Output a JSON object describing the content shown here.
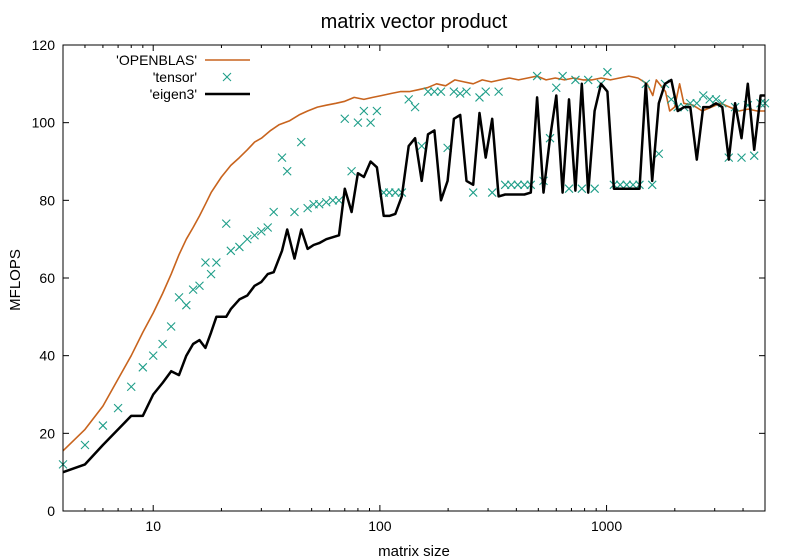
{
  "chart_data": {
    "type": "line",
    "title": "matrix vector product",
    "xlabel": "matrix size",
    "ylabel": "MFLOPS",
    "xscale": "log",
    "xlim": [
      4,
      5000
    ],
    "ylim": [
      0,
      120
    ],
    "x_ticks": [
      10,
      100,
      1000
    ],
    "x_tick_labels": [
      "10",
      "100",
      "1000"
    ],
    "y_ticks": [
      0,
      20,
      40,
      60,
      80,
      100,
      120
    ],
    "y_tick_labels": [
      "0",
      "20",
      "40",
      "60",
      "80",
      "100",
      "120"
    ],
    "grid": false,
    "legend_position": "top-left",
    "series": [
      {
        "name": "'OPENBLAS'",
        "style": "line",
        "color": "#c8641e",
        "points": [
          [
            4,
            15.5
          ],
          [
            5,
            21
          ],
          [
            6,
            27
          ],
          [
            7,
            34
          ],
          [
            8,
            40
          ],
          [
            9,
            46
          ],
          [
            10,
            51
          ],
          [
            11,
            56
          ],
          [
            12,
            61
          ],
          [
            13,
            66
          ],
          [
            14,
            70
          ],
          [
            15,
            73
          ],
          [
            16,
            76
          ],
          [
            17,
            79
          ],
          [
            18,
            82
          ],
          [
            20,
            86
          ],
          [
            22,
            89
          ],
          [
            24,
            91
          ],
          [
            26,
            93
          ],
          [
            28,
            95
          ],
          [
            30,
            96
          ],
          [
            33,
            98
          ],
          [
            36,
            99.5
          ],
          [
            40,
            100.5
          ],
          [
            44,
            102
          ],
          [
            48,
            103
          ],
          [
            53,
            104
          ],
          [
            58,
            104.5
          ],
          [
            64,
            105
          ],
          [
            70,
            105.5
          ],
          [
            77,
            106.5
          ],
          [
            85,
            106
          ],
          [
            93,
            106.5
          ],
          [
            102,
            107
          ],
          [
            112,
            107.5
          ],
          [
            123,
            108
          ],
          [
            135,
            108
          ],
          [
            148,
            108.5
          ],
          [
            162,
            109
          ],
          [
            178,
            110
          ],
          [
            195,
            109.5
          ],
          [
            214,
            111
          ],
          [
            235,
            110.5
          ],
          [
            258,
            110
          ],
          [
            283,
            111
          ],
          [
            310,
            110.5
          ],
          [
            340,
            111
          ],
          [
            373,
            111.5
          ],
          [
            409,
            111
          ],
          [
            449,
            111.5
          ],
          [
            493,
            112
          ],
          [
            541,
            111
          ],
          [
            594,
            111.5
          ],
          [
            652,
            111
          ],
          [
            716,
            111.5
          ],
          [
            786,
            111
          ],
          [
            863,
            111
          ],
          [
            947,
            111.5
          ],
          [
            1040,
            111
          ],
          [
            1141,
            111.5
          ],
          [
            1253,
            112
          ],
          [
            1375,
            111.5
          ],
          [
            1510,
            110
          ],
          [
            1600,
            107
          ],
          [
            1657,
            111
          ],
          [
            1819,
            108
          ],
          [
            1900,
            103
          ],
          [
            1997,
            104
          ],
          [
            2100,
            110
          ],
          [
            2192,
            105
          ],
          [
            2407,
            104.5
          ],
          [
            2642,
            103
          ],
          [
            2900,
            104
          ],
          [
            3184,
            105
          ],
          [
            3495,
            104
          ],
          [
            3837,
            103
          ],
          [
            4212,
            103.5
          ],
          [
            4624,
            103
          ],
          [
            5000,
            103
          ]
        ]
      },
      {
        "name": "'tensor'",
        "style": "points",
        "marker": "x",
        "color": "#1f9e89",
        "points": [
          [
            4,
            12
          ],
          [
            5,
            17
          ],
          [
            6,
            22
          ],
          [
            7,
            26.5
          ],
          [
            8,
            32
          ],
          [
            9,
            37
          ],
          [
            10,
            40
          ],
          [
            11,
            43
          ],
          [
            12,
            47.5
          ],
          [
            13,
            55
          ],
          [
            14,
            53
          ],
          [
            15,
            57
          ],
          [
            16,
            58
          ],
          [
            17,
            64
          ],
          [
            18,
            61
          ],
          [
            19,
            64
          ],
          [
            21,
            74
          ],
          [
            22,
            67
          ],
          [
            24,
            68
          ],
          [
            26,
            70
          ],
          [
            28,
            71
          ],
          [
            30,
            72
          ],
          [
            32,
            73
          ],
          [
            34,
            77
          ],
          [
            37,
            91
          ],
          [
            39,
            87.5
          ],
          [
            42,
            77
          ],
          [
            45,
            95
          ],
          [
            48,
            78
          ],
          [
            51,
            79
          ],
          [
            54,
            79
          ],
          [
            58,
            79.5
          ],
          [
            62,
            80
          ],
          [
            66,
            80
          ],
          [
            70,
            101
          ],
          [
            75,
            87.5
          ],
          [
            80,
            100
          ],
          [
            85,
            103
          ],
          [
            91,
            100
          ],
          [
            97,
            103
          ],
          [
            104,
            82
          ],
          [
            110,
            82
          ],
          [
            117,
            82
          ],
          [
            125,
            82
          ],
          [
            134,
            106
          ],
          [
            143,
            104
          ],
          [
            153,
            94
          ],
          [
            163,
            108
          ],
          [
            174,
            108
          ],
          [
            186,
            108
          ],
          [
            199,
            93.5
          ],
          [
            212,
            108
          ],
          [
            226,
            107.5
          ],
          [
            241,
            108
          ],
          [
            258,
            82
          ],
          [
            275,
            106.5
          ],
          [
            293,
            108
          ],
          [
            313,
            82
          ],
          [
            334,
            108
          ],
          [
            357,
            84
          ],
          [
            380,
            84
          ],
          [
            406,
            84
          ],
          [
            434,
            84
          ],
          [
            463,
            84
          ],
          [
            494,
            112
          ],
          [
            527,
            85
          ],
          [
            563,
            96
          ],
          [
            600,
            109
          ],
          [
            640,
            112
          ],
          [
            683,
            83
          ],
          [
            729,
            111
          ],
          [
            778,
            83
          ],
          [
            830,
            111
          ],
          [
            886,
            83
          ],
          [
            945,
            110
          ],
          [
            1009,
            113
          ],
          [
            1077,
            84
          ],
          [
            1149,
            84
          ],
          [
            1227,
            84
          ],
          [
            1309,
            84
          ],
          [
            1397,
            84
          ],
          [
            1490,
            110
          ],
          [
            1590,
            84
          ],
          [
            1700,
            92
          ],
          [
            1810,
            110
          ],
          [
            1930,
            106
          ],
          [
            2060,
            104
          ],
          [
            2200,
            104
          ],
          [
            2340,
            105
          ],
          [
            2500,
            105
          ],
          [
            2670,
            107
          ],
          [
            2850,
            106
          ],
          [
            3040,
            106
          ],
          [
            3240,
            105
          ],
          [
            3460,
            91
          ],
          [
            3690,
            104
          ],
          [
            3940,
            91
          ],
          [
            4200,
            104.5
          ],
          [
            4480,
            91.5
          ],
          [
            4780,
            105
          ],
          [
            5000,
            105
          ]
        ]
      },
      {
        "name": "'eigen3'",
        "style": "line",
        "color": "#000000",
        "points": [
          [
            4,
            10
          ],
          [
            5,
            12
          ],
          [
            6,
            17
          ],
          [
            7,
            21
          ],
          [
            8,
            24.5
          ],
          [
            9,
            24.5
          ],
          [
            10,
            30
          ],
          [
            11,
            33
          ],
          [
            12,
            36
          ],
          [
            13,
            35
          ],
          [
            14,
            40
          ],
          [
            15,
            43
          ],
          [
            16,
            44
          ],
          [
            17,
            42
          ],
          [
            18,
            46
          ],
          [
            19,
            50
          ],
          [
            21,
            50
          ],
          [
            22,
            52
          ],
          [
            24,
            54.5
          ],
          [
            26,
            55.5
          ],
          [
            28,
            58
          ],
          [
            30,
            59
          ],
          [
            32,
            61
          ],
          [
            34,
            61.5
          ],
          [
            37,
            67
          ],
          [
            39,
            72.5
          ],
          [
            42,
            65
          ],
          [
            45,
            72.5
          ],
          [
            48,
            67.5
          ],
          [
            51,
            68.5
          ],
          [
            54,
            69
          ],
          [
            58,
            70
          ],
          [
            62,
            70.5
          ],
          [
            66,
            71
          ],
          [
            70,
            83
          ],
          [
            75,
            77
          ],
          [
            80,
            87
          ],
          [
            85,
            86
          ],
          [
            91,
            90
          ],
          [
            97,
            88.5
          ],
          [
            104,
            76
          ],
          [
            110,
            76
          ],
          [
            117,
            76.5
          ],
          [
            125,
            81
          ],
          [
            134,
            94
          ],
          [
            143,
            96
          ],
          [
            153,
            85
          ],
          [
            163,
            97
          ],
          [
            174,
            98
          ],
          [
            186,
            80
          ],
          [
            199,
            85
          ],
          [
            212,
            101
          ],
          [
            226,
            102
          ],
          [
            241,
            85
          ],
          [
            258,
            84
          ],
          [
            275,
            102.5
          ],
          [
            293,
            91
          ],
          [
            313,
            101
          ],
          [
            334,
            81
          ],
          [
            357,
            81.5
          ],
          [
            380,
            81.5
          ],
          [
            406,
            81.5
          ],
          [
            434,
            81.5
          ],
          [
            463,
            82
          ],
          [
            494,
            106.5
          ],
          [
            527,
            82
          ],
          [
            563,
            96
          ],
          [
            600,
            107
          ],
          [
            640,
            82
          ],
          [
            683,
            106
          ],
          [
            729,
            82.5
          ],
          [
            778,
            110
          ],
          [
            830,
            82
          ],
          [
            886,
            103
          ],
          [
            945,
            110
          ],
          [
            1009,
            108
          ],
          [
            1077,
            83
          ],
          [
            1149,
            83
          ],
          [
            1227,
            83
          ],
          [
            1309,
            83
          ],
          [
            1397,
            83
          ],
          [
            1490,
            110
          ],
          [
            1590,
            85
          ],
          [
            1700,
            105
          ],
          [
            1810,
            110
          ],
          [
            1930,
            111
          ],
          [
            2060,
            103
          ],
          [
            2200,
            104
          ],
          [
            2340,
            104
          ],
          [
            2500,
            90.5
          ],
          [
            2670,
            104
          ],
          [
            2850,
            104
          ],
          [
            3040,
            105
          ],
          [
            3240,
            104
          ],
          [
            3460,
            90.5
          ],
          [
            3690,
            105
          ],
          [
            3940,
            96
          ],
          [
            4200,
            110
          ],
          [
            4480,
            93
          ],
          [
            4780,
            107
          ],
          [
            5000,
            107
          ]
        ]
      }
    ]
  }
}
